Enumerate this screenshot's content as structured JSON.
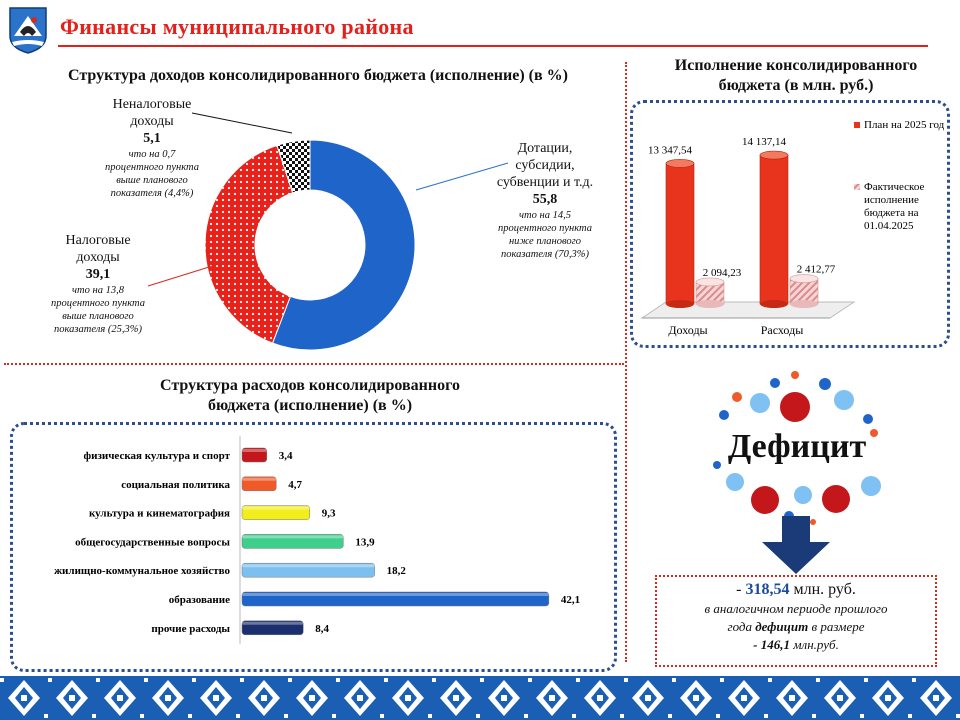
{
  "header": {
    "title": "Финансы муниципального района"
  },
  "revenue_structure": {
    "title": "Структура доходов консолидированного бюджета (исполнение) (в %)",
    "items": [
      {
        "label_line1": "Дотации,",
        "label_line2": "субсидии,",
        "label_line3": "субвенции и т.д.",
        "value": "55,8",
        "note_line1": "что на 14,5",
        "note_line2": "процентного пункта",
        "note_line3": "ниже планового",
        "note_line4": "показателя (70,3%)"
      },
      {
        "label_line1": "Налоговые",
        "label_line2": "доходы",
        "value": "39,1",
        "note_line1": "что на 13,8",
        "note_line2": "процентного пункта",
        "note_line3": "выше планового",
        "note_line4": "показателя (25,3%)"
      },
      {
        "label_line1": "Неналоговые",
        "label_line2": "доходы",
        "value": "5,1",
        "note_line1": "что на 0,7",
        "note_line2": "процентного пункта",
        "note_line3": "выше планового",
        "note_line4": "показателя (4,4%)"
      }
    ]
  },
  "execution": {
    "title_line1": "Исполнение консолидированного",
    "title_line2": "бюджета (в млн. руб.)",
    "legend_plan": "План на 2025 год",
    "legend_fact_line1": "Фактическое",
    "legend_fact_line2": "исполнение",
    "legend_fact_line3": "бюджета на",
    "legend_fact_line4": "01.04.2025"
  },
  "expenses_structure": {
    "title_line1": "Структура расходов консолидированного",
    "title_line2": "бюджета (исполнение) (в %)"
  },
  "deficit": {
    "word": "Дефицит",
    "dash": "- ",
    "amount": "318,54",
    "unit": " млн. руб.",
    "note_line1": "в аналогичном периоде прошлого",
    "note_line2_a": "года ",
    "note_line2_b": "дефицит",
    "note_line2_c": " в размере",
    "prev_value": "- 146,1",
    "prev_unit": " млн.руб."
  },
  "colors": {
    "brand_red": "#e4201b",
    "blue": "#1f64c8",
    "dark_navy": "#1b3a78"
  },
  "chart_data": [
    {
      "type": "pie",
      "variant": "donut",
      "categories": [
        "Дотации, субсидии, субвенции и т.д.",
        "Налоговые доходы",
        "Неналоговые доходы"
      ],
      "values": [
        55.8,
        39.1,
        5.1
      ],
      "colors": [
        "#1f64c8",
        "#e8221b",
        "#111111"
      ],
      "patterns": [
        "solid",
        "dotted",
        "checker"
      ]
    },
    {
      "type": "bar",
      "orientation": "vertical",
      "categories": [
        "Доходы",
        "Расходы"
      ],
      "series": [
        {
          "name": "План на 2025 год",
          "values": [
            13347.54,
            14137.14
          ],
          "labels": [
            "13 347,54",
            "14 137,14"
          ],
          "color": "#e8341c"
        },
        {
          "name": "Фактическое исполнение бюджета на 01.04.2025",
          "values": [
            2094.23,
            2412.77
          ],
          "labels": [
            "2 094,23",
            "2 412,77"
          ],
          "color": "#f3c9c9"
        }
      ],
      "ylim": [
        0,
        15000
      ],
      "legend": "right"
    },
    {
      "type": "bar",
      "orientation": "horizontal",
      "categories": [
        "физическая культура и спорт",
        "социальная политика",
        "культура и кинематография",
        "общегосударственные вопросы",
        "жилищно-коммунальное хозяйство",
        "образование",
        "прочие расходы"
      ],
      "values": [
        3.4,
        4.7,
        9.3,
        13.9,
        18.2,
        42.1,
        8.4
      ],
      "labels": [
        "3,4",
        "4,7",
        "9,3",
        "13,9",
        "18,2",
        "42,1",
        "8,4"
      ],
      "colors": [
        "#c3171c",
        "#f05a28",
        "#f2ee1d",
        "#3fcf8c",
        "#7cc0f0",
        "#1f64c8",
        "#1b2f6e"
      ],
      "xlim": [
        0,
        45
      ]
    }
  ]
}
